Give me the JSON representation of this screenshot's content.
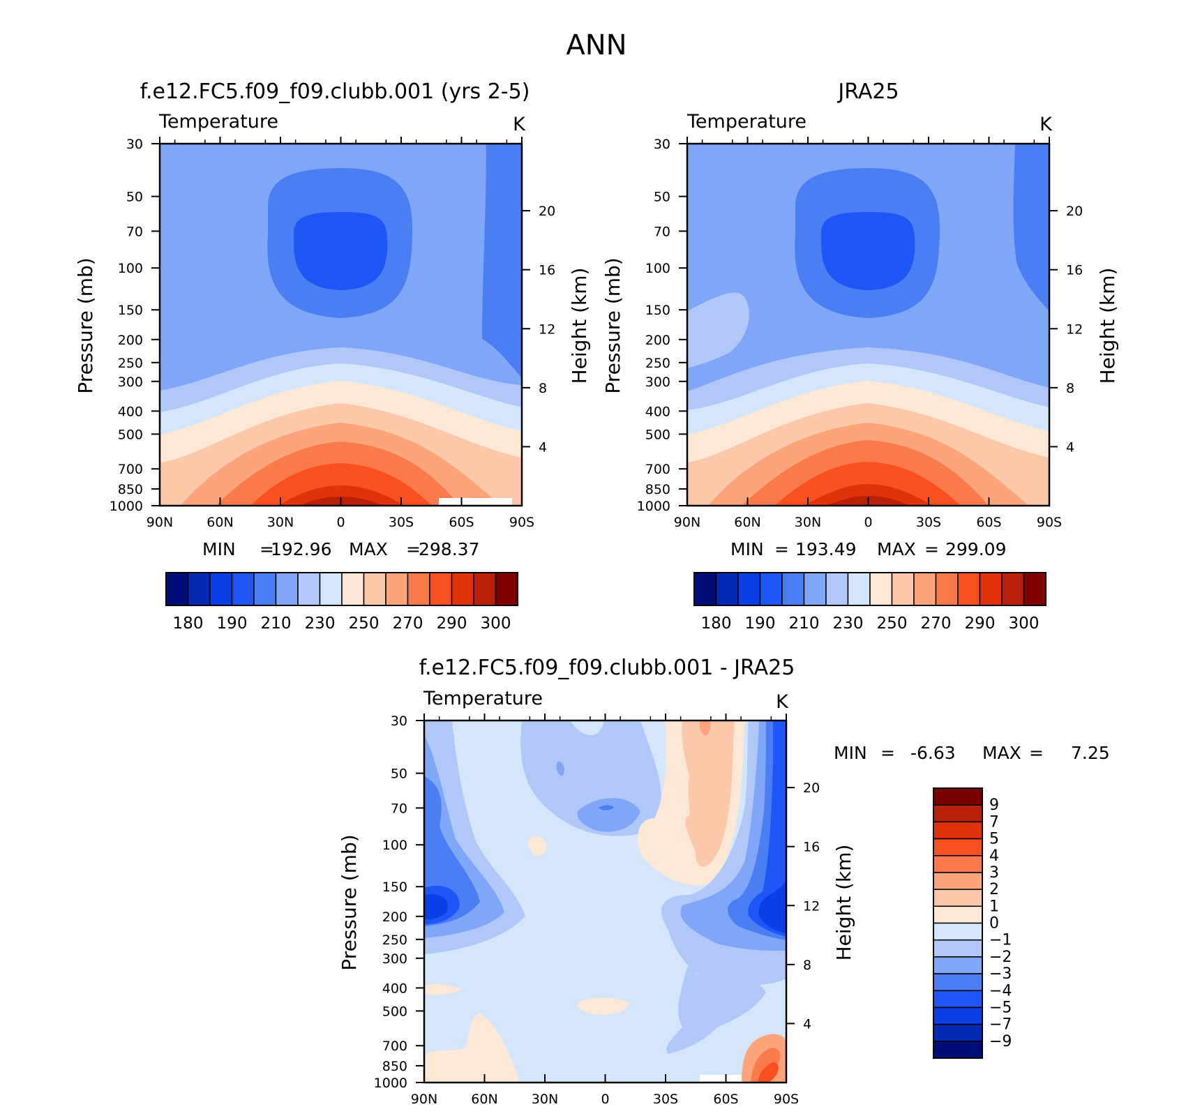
{
  "figure_title": "ANN",
  "chart_data": [
    {
      "type": "contour",
      "title": "f.e12.FC5.f09_f09.clubb.001 (yrs 2-5)",
      "variable": "Temperature",
      "units": "K",
      "xlabel": "",
      "ylabel": "Pressure (mb)",
      "ylabel_right": "Height (km)",
      "x_ticks": [
        "90N",
        "60N",
        "30N",
        "0",
        "30S",
        "60S",
        "90S"
      ],
      "y_ticks": [
        30,
        50,
        70,
        100,
        150,
        200,
        250,
        300,
        400,
        500,
        700,
        850,
        1000
      ],
      "y_right_ticks": [
        20,
        16,
        12,
        8,
        4
      ],
      "ylim": [
        1000,
        30
      ],
      "stats": {
        "min_label": "MIN",
        "min": "192.96",
        "max_label": "MAX",
        "max": "298.37"
      },
      "contour_levels_K": [
        [
          30,
          203
        ],
        [
          50,
          200
        ],
        [
          70,
          200
        ],
        [
          100,
          200
        ],
        [
          150,
          206
        ],
        [
          200,
          211
        ],
        [
          250,
          220
        ],
        [
          300,
          228
        ],
        [
          400,
          242
        ],
        [
          500,
          252
        ],
        [
          700,
          268
        ],
        [
          850,
          278
        ],
        [
          1000,
          288
        ]
      ],
      "colorbar": {
        "labels": [
          "180",
          "190",
          "210",
          "230",
          "250",
          "270",
          "290",
          "300"
        ]
      }
    },
    {
      "type": "contour",
      "title": "JRA25",
      "variable": "Temperature",
      "units": "K",
      "xlabel": "",
      "ylabel": "Pressure (mb)",
      "ylabel_right": "Height (km)",
      "x_ticks": [
        "90N",
        "60N",
        "30N",
        "0",
        "30S",
        "60S",
        "90S"
      ],
      "y_ticks": [
        30,
        50,
        70,
        100,
        150,
        200,
        250,
        300,
        400,
        500,
        700,
        850,
        1000
      ],
      "y_right_ticks": [
        20,
        16,
        12,
        8,
        4
      ],
      "ylim": [
        1000,
        30
      ],
      "stats": {
        "min_label": "MIN",
        "min": "193.49",
        "max_label": "MAX",
        "max": "299.09"
      },
      "colorbar": {
        "labels": [
          "180",
          "190",
          "210",
          "230",
          "250",
          "270",
          "290",
          "300"
        ]
      }
    },
    {
      "type": "contour",
      "title": "f.e12.FC5.f09_f09.clubb.001 - JRA25",
      "variable": "Temperature",
      "units": "K",
      "xlabel": "",
      "ylabel": "Pressure (mb)",
      "ylabel_right": "Height (km)",
      "x_ticks": [
        "90N",
        "60N",
        "30N",
        "0",
        "30S",
        "60S",
        "90S"
      ],
      "y_ticks": [
        30,
        50,
        70,
        100,
        150,
        200,
        250,
        300,
        400,
        500,
        700,
        850,
        1000
      ],
      "y_right_ticks": [
        20,
        16,
        12,
        8,
        4
      ],
      "ylim": [
        1000,
        30
      ],
      "stats": {
        "min_label": "MIN",
        "min": "-6.63",
        "max_label": "MAX",
        "max": "7.25"
      },
      "colorbar": {
        "labels": [
          "9",
          "7",
          "5",
          "4",
          "3",
          "2",
          "1",
          "0",
          "−1",
          "−2",
          "−3",
          "−4",
          "−5",
          "−7",
          "−9"
        ]
      }
    }
  ],
  "palettes": {
    "abs": [
      "#000e7a",
      "#0529b2",
      "#0a3ee6",
      "#1e56f8",
      "#4a7ef2",
      "#7fa6f7",
      "#b0c8f8",
      "#d4e6fb",
      "#fde8d6",
      "#fcc8aa",
      "#fca47b",
      "#fb7a4b",
      "#f95020",
      "#e2320c",
      "#b82108",
      "#800000"
    ],
    "diff": [
      "#7a0000",
      "#b82108",
      "#e2320c",
      "#f95020",
      "#fb7a4b",
      "#fca47b",
      "#fcc8aa",
      "#fde8d6",
      "#d4e6fb",
      "#b0c8f8",
      "#7fa6f7",
      "#4a7ef2",
      "#1e56f8",
      "#0a3ee6",
      "#0529b2",
      "#000e7a"
    ]
  }
}
